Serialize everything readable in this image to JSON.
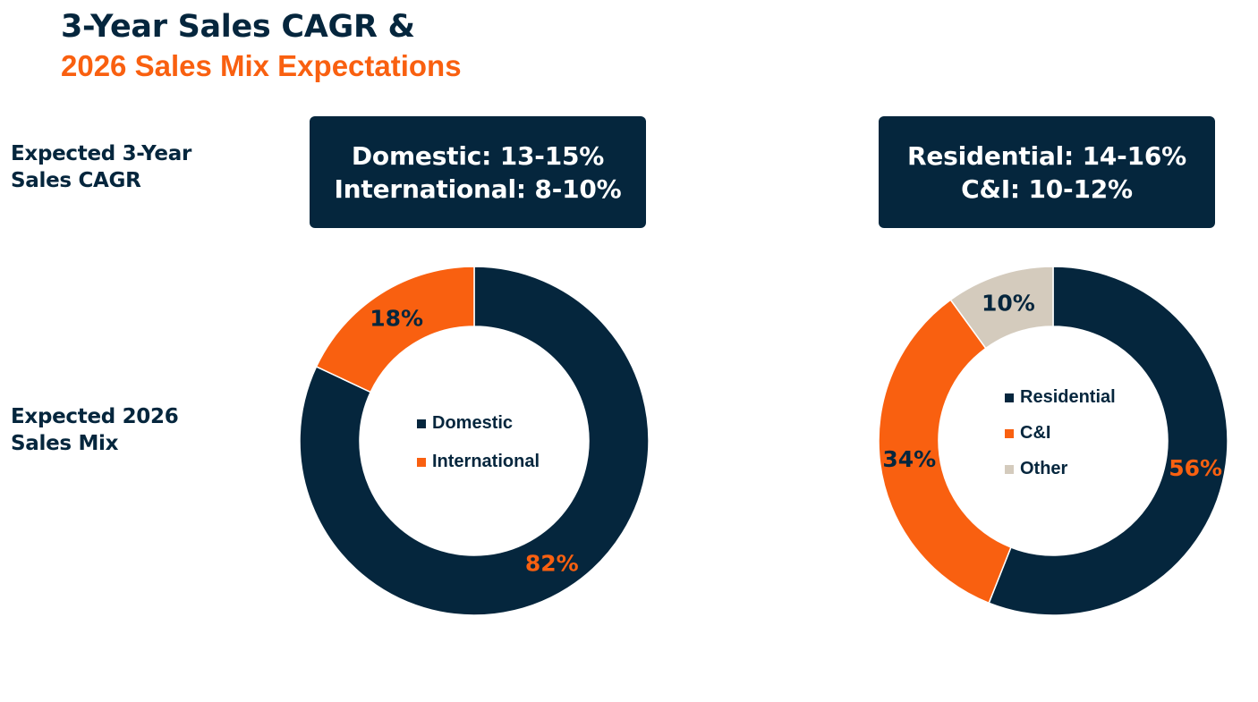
{
  "title": {
    "line1": "3-Year Sales CAGR &",
    "line2": "2026 Sales Mix Expectations"
  },
  "labels": {
    "cagr": "Expected 3-Year Sales CAGR",
    "mix": "Expected 2026 Sales Mix"
  },
  "cagr_boxes": [
    {
      "line1": "Domestic: 13-15%",
      "line2": "International: 8-10%"
    },
    {
      "line1": "Residential: 14-16%",
      "line2": "C&I: 10-12%"
    }
  ],
  "colors": {
    "navy": "#05263d",
    "orange": "#f96010",
    "beige": "#d4cbbd"
  },
  "chart_data": [
    {
      "type": "pie",
      "donut": true,
      "categories": [
        "Domestic",
        "International"
      ],
      "values": [
        82,
        18
      ],
      "value_labels": [
        "82%",
        "18%"
      ],
      "colors": [
        "#05263d",
        "#f96010"
      ],
      "label_colors": [
        "#f96010",
        "#05263d"
      ],
      "legend": "center"
    },
    {
      "type": "pie",
      "donut": true,
      "categories": [
        "Residential",
        "C&I",
        "Other"
      ],
      "values": [
        56,
        34,
        10
      ],
      "value_labels": [
        "56%",
        "34%",
        "10%"
      ],
      "colors": [
        "#05263d",
        "#f96010",
        "#d4cbbd"
      ],
      "label_colors": [
        "#f96010",
        "#05263d",
        "#05263d"
      ],
      "legend": "center"
    }
  ]
}
